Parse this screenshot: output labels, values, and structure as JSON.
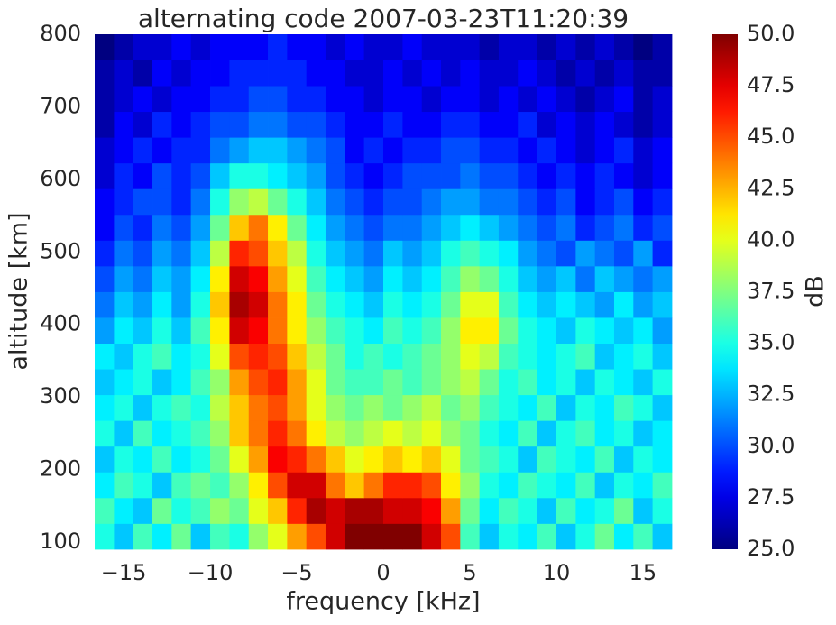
{
  "chart_data": {
    "type": "heatmap",
    "title": "alternating code 2007-03-23T11:20:39",
    "xlabel": "frequency [kHz]",
    "ylabel": "altitude [km]",
    "colorbar_label": "dB",
    "colormap": "jet",
    "xlim": [
      -16.67,
      16.67
    ],
    "ylim": [
      90,
      800
    ],
    "xticks": [
      {
        "value": -15,
        "label": "−15"
      },
      {
        "value": -10,
        "label": "−10"
      },
      {
        "value": -5,
        "label": "−5"
      },
      0,
      5,
      10,
      15
    ],
    "yticks": [
      100,
      200,
      300,
      400,
      500,
      600,
      700,
      800
    ],
    "clim": [
      25,
      50
    ],
    "cticks": [
      {
        "value": 25,
        "label": "25.0"
      },
      {
        "value": 27.5,
        "label": "27.5"
      },
      {
        "value": 30,
        "label": "30.0"
      },
      {
        "value": 32.5,
        "label": "32.5"
      },
      {
        "value": 35,
        "label": "35.0"
      },
      {
        "value": 37.5,
        "label": "37.5"
      },
      {
        "value": 40,
        "label": "40.0"
      },
      {
        "value": 42.5,
        "label": "42.5"
      },
      {
        "value": 45,
        "label": "45.0"
      },
      {
        "value": 47.5,
        "label": "47.5"
      },
      {
        "value": 50,
        "label": "50.0"
      }
    ],
    "x": [
      -16.11,
      -15.0,
      -13.89,
      -12.78,
      -11.67,
      -10.56,
      -9.44,
      -8.33,
      -7.22,
      -6.11,
      -5.0,
      -3.89,
      -2.78,
      -1.67,
      -0.56,
      0.56,
      1.67,
      2.78,
      3.89,
      5.0,
      6.11,
      7.22,
      8.33,
      9.44,
      10.56,
      11.67,
      12.78,
      13.89,
      15.0,
      16.11
    ],
    "y": [
      107.75,
      143.25,
      178.75,
      214.25,
      249.75,
      285.25,
      320.75,
      356.25,
      391.75,
      427.25,
      462.75,
      498.25,
      533.75,
      569.25,
      604.75,
      640.25,
      675.75,
      711.25,
      746.75,
      782.25
    ],
    "z": [
      [
        35,
        33,
        36,
        34,
        37,
        33,
        36,
        35,
        38,
        40,
        43,
        45,
        48,
        50,
        50,
        50,
        50,
        48,
        45,
        36,
        33,
        35,
        34,
        36,
        33,
        35,
        37,
        34,
        36,
        33
      ],
      [
        36,
        34,
        33,
        37,
        35,
        36,
        38,
        37,
        40,
        42,
        46,
        49,
        48,
        49,
        49,
        48,
        48,
        47,
        43,
        37,
        34,
        36,
        35,
        33,
        36,
        34,
        35,
        37,
        33,
        35
      ],
      [
        34,
        36,
        35,
        33,
        36,
        37,
        36,
        38,
        41,
        45,
        48,
        48,
        44,
        42,
        44,
        46,
        46,
        45,
        41,
        38,
        35,
        34,
        36,
        35,
        34,
        36,
        33,
        35,
        34,
        36
      ],
      [
        33,
        35,
        34,
        36,
        34,
        35,
        37,
        40,
        43,
        47,
        46,
        44,
        42,
        40,
        41,
        42,
        41,
        42,
        40,
        37,
        36,
        35,
        33,
        36,
        35,
        34,
        36,
        33,
        35,
        34
      ],
      [
        35,
        33,
        36,
        34,
        35,
        36,
        38,
        42,
        44,
        46,
        44,
        41,
        39,
        38,
        39,
        40,
        39,
        40,
        38,
        37,
        35,
        34,
        36,
        33,
        35,
        36,
        34,
        35,
        33,
        34
      ],
      [
        34,
        35,
        33,
        35,
        36,
        35,
        39,
        42,
        44,
        45,
        43,
        40,
        38,
        37,
        38,
        37,
        38,
        39,
        37,
        38,
        36,
        35,
        34,
        36,
        33,
        35,
        34,
        36,
        35,
        33
      ],
      [
        33,
        34,
        35,
        33,
        34,
        36,
        38,
        43,
        45,
        46,
        43,
        40,
        37,
        36,
        36,
        37,
        36,
        37,
        38,
        39,
        37,
        35,
        36,
        34,
        35,
        33,
        35,
        34,
        33,
        35
      ],
      [
        34,
        33,
        35,
        36,
        34,
        35,
        40,
        45,
        46,
        45,
        42,
        39,
        37,
        35,
        36,
        35,
        36,
        37,
        38,
        40,
        39,
        36,
        35,
        34,
        35,
        36,
        33,
        34,
        35,
        33
      ],
      [
        32,
        34,
        33,
        35,
        33,
        36,
        41,
        48,
        47,
        44,
        41,
        38,
        36,
        35,
        34,
        36,
        35,
        36,
        38,
        41,
        41,
        37,
        35,
        34,
        33,
        35,
        34,
        33,
        34,
        32
      ],
      [
        31,
        33,
        32,
        34,
        32,
        35,
        42,
        49,
        48,
        44,
        41,
        37,
        35,
        34,
        33,
        35,
        34,
        35,
        37,
        40,
        40,
        36,
        34,
        33,
        34,
        33,
        32,
        34,
        32,
        33
      ],
      [
        30,
        32,
        31,
        33,
        32,
        34,
        41,
        48,
        47,
        43,
        40,
        36,
        34,
        33,
        32,
        34,
        33,
        34,
        36,
        38,
        37,
        35,
        33,
        32,
        33,
        31,
        33,
        32,
        31,
        32
      ],
      [
        29,
        31,
        30,
        32,
        31,
        33,
        39,
        46,
        45,
        42,
        39,
        35,
        33,
        32,
        31,
        33,
        32,
        33,
        35,
        36,
        35,
        34,
        32,
        31,
        30,
        32,
        31,
        30,
        32,
        29
      ],
      [
        28,
        30,
        29,
        31,
        30,
        32,
        37,
        42,
        44,
        41,
        37,
        34,
        32,
        31,
        30,
        31,
        31,
        32,
        33,
        34,
        33,
        32,
        31,
        30,
        31,
        29,
        30,
        31,
        29,
        30
      ],
      [
        28,
        29,
        30,
        30,
        29,
        31,
        35,
        38,
        39,
        37,
        35,
        33,
        31,
        30,
        29,
        30,
        30,
        31,
        32,
        32,
        31,
        31,
        30,
        29,
        30,
        28,
        29,
        30,
        28,
        29
      ],
      [
        27,
        29,
        28,
        30,
        29,
        30,
        33,
        35,
        35,
        34,
        33,
        32,
        30,
        29,
        28,
        29,
        30,
        30,
        30,
        31,
        30,
        30,
        29,
        28,
        29,
        28,
        29,
        28,
        27,
        28
      ],
      [
        27,
        28,
        29,
        28,
        29,
        29,
        31,
        32,
        33,
        33,
        32,
        31,
        30,
        28,
        29,
        28,
        29,
        29,
        30,
        30,
        29,
        29,
        28,
        29,
        28,
        27,
        28,
        29,
        27,
        28
      ],
      [
        26,
        28,
        27,
        29,
        28,
        29,
        30,
        30,
        31,
        31,
        30,
        30,
        29,
        28,
        28,
        29,
        28,
        28,
        29,
        29,
        28,
        28,
        29,
        27,
        28,
        27,
        28,
        27,
        26,
        27
      ],
      [
        26,
        27,
        28,
        27,
        28,
        28,
        29,
        29,
        30,
        30,
        29,
        29,
        28,
        28,
        27,
        28,
        28,
        27,
        28,
        28,
        27,
        28,
        27,
        28,
        27,
        26,
        27,
        28,
        26,
        27
      ],
      [
        26,
        27,
        26,
        28,
        27,
        28,
        28,
        29,
        29,
        29,
        29,
        28,
        28,
        27,
        27,
        28,
        27,
        28,
        27,
        28,
        27,
        27,
        28,
        27,
        26,
        27,
        26,
        27,
        26,
        26
      ],
      [
        25,
        26,
        27,
        27,
        28,
        27,
        28,
        28,
        28,
        29,
        28,
        28,
        27,
        28,
        27,
        27,
        28,
        27,
        27,
        27,
        26,
        27,
        27,
        26,
        27,
        26,
        27,
        26,
        25,
        26
      ]
    ]
  }
}
